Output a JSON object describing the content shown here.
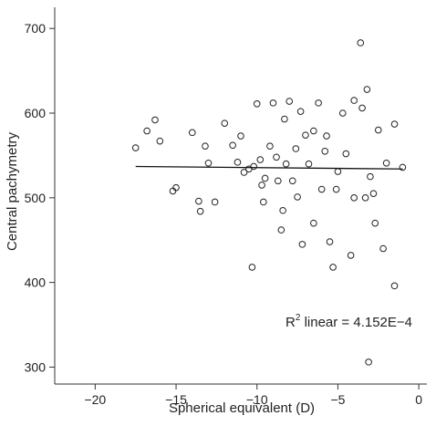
{
  "chart_data": {
    "type": "scatter",
    "title": "",
    "xlabel": "Spherical equivalent (D)",
    "ylabel": "Central pachymetry",
    "xlim": [
      -22.5,
      0.5
    ],
    "ylim": [
      280,
      725
    ],
    "x_ticks": [
      -20,
      -15,
      -10,
      -5,
      0
    ],
    "y_ticks": [
      300,
      400,
      500,
      600,
      700
    ],
    "x_tick_labels": [
      "−20",
      "−15",
      "−10",
      "−5",
      "0"
    ],
    "y_tick_labels": [
      "300",
      "400",
      "500",
      "600",
      "700"
    ],
    "grid": false,
    "legend": "none",
    "marker": "open-circle",
    "colors": {
      "marker": "#222222",
      "fit_line": "#111111",
      "axis": "#333333",
      "background": "#ffffff"
    },
    "annotation": {
      "prefix": "R",
      "superscript": "2",
      "suffix": " linear = 4.152E−4"
    },
    "fit_line": {
      "x": [
        -17.5,
        -1.0
      ],
      "y": [
        537,
        534
      ]
    },
    "series": [
      {
        "x": [
          -17.5,
          -16.8,
          -16.3,
          -16.0,
          -15.2,
          -15.0,
          -14.0,
          -13.6,
          -13.5,
          -13.2,
          -13.0,
          -12.6,
          -12.0,
          -11.5,
          -11.2,
          -11.0,
          -10.8,
          -10.5,
          -10.3,
          -10.2,
          -10.0,
          -9.8,
          -9.7,
          -9.6,
          -9.5,
          -9.2,
          -9.0,
          -8.8,
          -8.7,
          -8.5,
          -8.3,
          -8.2,
          -8.0,
          -7.8,
          -7.6,
          -7.5,
          -7.3,
          -7.0,
          -6.8,
          -6.5,
          -6.2,
          -6.0,
          -5.7,
          -5.5,
          -5.0,
          -4.5,
          -4.0,
          -3.5,
          -3.0,
          -2.7,
          -2.5,
          -2.0,
          -1.5,
          -1.0,
          -3.6,
          -3.2,
          -3.1,
          -1.5,
          -6.5,
          -5.3,
          -4.2,
          -2.8,
          -7.2,
          -5.1,
          -4.0,
          -3.3,
          -5.8,
          -4.7,
          -2.2,
          -8.4
        ],
        "y": [
          559,
          579,
          592,
          567,
          508,
          512,
          577,
          496,
          484,
          561,
          541,
          495,
          588,
          562,
          542,
          573,
          530,
          534,
          418,
          537,
          611,
          545,
          515,
          495,
          523,
          561,
          612,
          548,
          520,
          462,
          593,
          540,
          614,
          520,
          558,
          501,
          602,
          574,
          540,
          579,
          612,
          510,
          573,
          448,
          531,
          552,
          500,
          606,
          525,
          470,
          580,
          541,
          587,
          536,
          683,
          628,
          306,
          396,
          470,
          418,
          432,
          505,
          445,
          510,
          615,
          500,
          555,
          600,
          440,
          485
        ]
      }
    ]
  }
}
